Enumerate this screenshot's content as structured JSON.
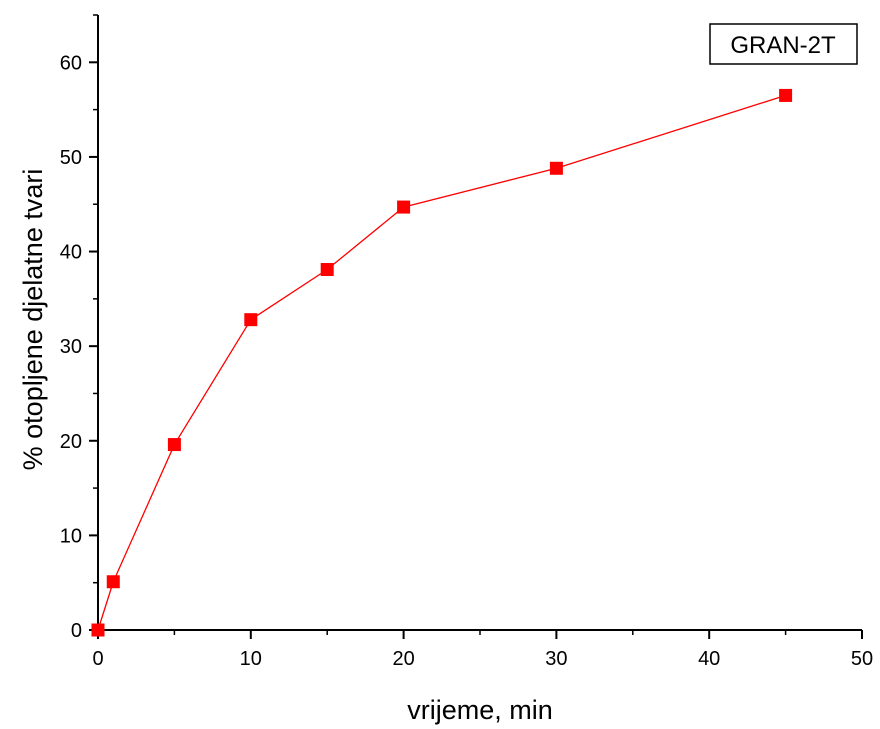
{
  "chart_data": {
    "type": "line",
    "title": "",
    "xlabel": "vrijeme, min",
    "ylabel": "% otopljene djelatne tvari",
    "xlim": [
      0,
      50
    ],
    "ylim": [
      0,
      65
    ],
    "xticks": [
      0,
      10,
      20,
      30,
      40,
      50
    ],
    "yticks": [
      0,
      10,
      20,
      30,
      40,
      50,
      60
    ],
    "grid": false,
    "legend": {
      "position": "top-right",
      "entries": [
        "GRAN-2T"
      ]
    },
    "series": [
      {
        "name": "GRAN-2T",
        "color": "#ff0000",
        "marker": "square",
        "x": [
          0,
          1,
          5,
          10,
          15,
          20,
          30,
          45
        ],
        "y": [
          0,
          5.1,
          19.6,
          32.8,
          38.1,
          44.7,
          48.8,
          56.5
        ]
      }
    ]
  }
}
